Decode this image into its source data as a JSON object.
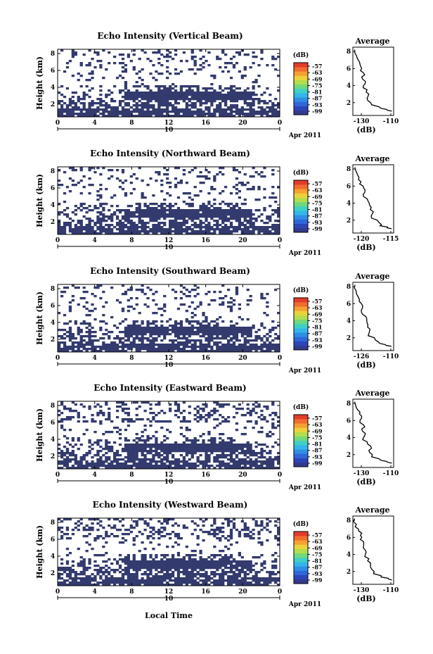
{
  "colors": {
    "navy": "#333a6e",
    "colorbar": [
      "#343a8c",
      "#2c45b8",
      "#2f67d8",
      "#2f8ee6",
      "#33b6ea",
      "#3fd0c4",
      "#6fd97c",
      "#b3dd4d",
      "#ecd23a",
      "#f6a032",
      "#f06d2e",
      "#e33b2a"
    ]
  },
  "colorbar_ticks": [
    "-57",
    "-63",
    "-69",
    "-75",
    "-81",
    "-87",
    "-93",
    "-99"
  ],
  "colorbar_unit": "(dB)",
  "time_ticks": [
    "0",
    "4",
    "8",
    "12",
    "16",
    "20",
    "0"
  ],
  "date_day": "10",
  "date_label": "Apr 2011",
  "x_axis_label": "Local Time",
  "height_ticks": [
    "8",
    "6",
    "4",
    "2"
  ],
  "height_label": "Height (km)",
  "avg_title": "Average",
  "avg_ylabel_ticks": [
    "8",
    "6",
    "4",
    "2"
  ],
  "avg_unit": "(dB)",
  "chart_data": [
    {
      "type": "heatmap",
      "title": "Echo Intensity (Vertical Beam)",
      "ylabel": "Height (km)",
      "ylim": [
        0.5,
        8.5
      ],
      "xlim": [
        0,
        24
      ],
      "avg_profile": {
        "xticks": [
          "-130",
          "-110"
        ],
        "xlim": [
          -132,
          -109
        ],
        "height": [
          8.2,
          7.5,
          7.0,
          6.5,
          6.0,
          5.5,
          5.0,
          4.5,
          4.0,
          3.5,
          3.0,
          2.5,
          2.0,
          1.5,
          1.2,
          1.0
        ],
        "value": [
          -131,
          -130,
          -129,
          -128,
          -127,
          -126,
          -127,
          -125,
          -126,
          -124,
          -123,
          -124,
          -122,
          -117,
          -113,
          -110
        ]
      }
    },
    {
      "type": "heatmap",
      "title": "Echo Intensity (Northward Beam)",
      "ylabel": "Height (km)",
      "ylim": [
        0.5,
        8.5
      ],
      "xlim": [
        0,
        24
      ],
      "avg_profile": {
        "xticks": [
          "-120",
          "-115"
        ],
        "xlim": [
          -123,
          -113
        ],
        "height": [
          8.2,
          7.5,
          7.0,
          6.5,
          6.0,
          5.5,
          5.0,
          4.5,
          4.0,
          3.5,
          3.0,
          2.5,
          2.0,
          1.5,
          1.2,
          1.0
        ],
        "value": [
          -122.5,
          -122,
          -121.5,
          -121,
          -120.5,
          -120,
          -120.5,
          -119.5,
          -119,
          -118.5,
          -118,
          -118.5,
          -117,
          -116,
          -114.5,
          -113.5
        ]
      }
    },
    {
      "type": "heatmap",
      "title": "Echo Intensity (Southward Beam)",
      "ylabel": "Height (km)",
      "ylim": [
        0.5,
        8.5
      ],
      "xlim": [
        0,
        24
      ],
      "avg_profile": {
        "xticks": [
          "-126",
          "-110"
        ],
        "xlim": [
          -128,
          -109
        ],
        "height": [
          8.2,
          7.5,
          7.0,
          6.5,
          6.0,
          5.5,
          5.0,
          4.5,
          4.0,
          3.5,
          3.0,
          2.5,
          2.0,
          1.5,
          1.2,
          1.0
        ],
        "value": [
          -127,
          -126.5,
          -126,
          -125,
          -124,
          -123.5,
          -124,
          -122,
          -121.5,
          -121,
          -120,
          -120.5,
          -118,
          -116,
          -113,
          -110
        ]
      }
    },
    {
      "type": "heatmap",
      "title": "Echo Intensity (Eastward Beam)",
      "ylabel": "Height (km)",
      "ylim": [
        0.5,
        8.5
      ],
      "xlim": [
        0,
        24
      ],
      "avg_profile": {
        "xticks": [
          "-130",
          "-110"
        ],
        "xlim": [
          -132,
          -109
        ],
        "height": [
          8.2,
          7.5,
          7.0,
          6.5,
          6.0,
          5.5,
          5.0,
          4.5,
          4.0,
          3.5,
          3.0,
          2.5,
          2.0,
          1.5,
          1.2,
          1.0
        ],
        "value": [
          -131,
          -130,
          -128,
          -127,
          -128,
          -126,
          -127,
          -125,
          -126,
          -124,
          -122,
          -123,
          -121,
          -117,
          -113,
          -110
        ]
      }
    },
    {
      "type": "heatmap",
      "title": "Echo Intensity (Westward Beam)",
      "ylabel": "Height (km)",
      "ylim": [
        0.5,
        8.5
      ],
      "xlim": [
        0,
        24
      ],
      "avg_profile": {
        "xticks": [
          "-130",
          "-110"
        ],
        "xlim": [
          -132,
          -109
        ],
        "height": [
          8.2,
          7.5,
          7.0,
          6.5,
          6.0,
          5.5,
          5.0,
          4.5,
          4.0,
          3.5,
          3.0,
          2.5,
          2.0,
          1.5,
          1.2,
          1.0
        ],
        "value": [
          -131,
          -130,
          -129,
          -127,
          -127,
          -126,
          -126,
          -125,
          -125,
          -123,
          -122,
          -122,
          -120,
          -116,
          -112,
          -110
        ]
      }
    }
  ]
}
